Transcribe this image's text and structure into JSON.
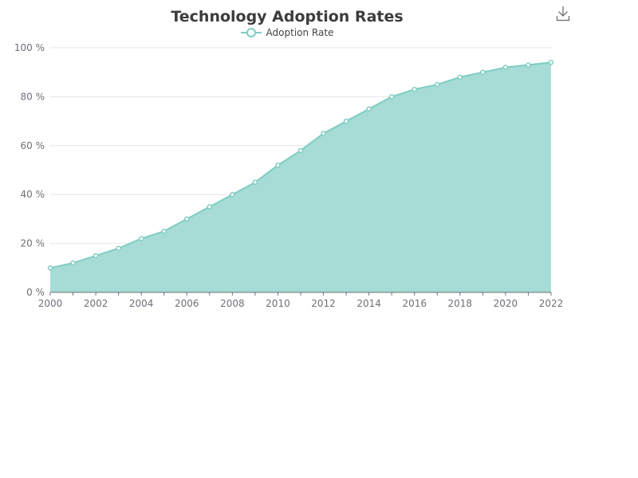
{
  "toolbar": {
    "download_icon": "download-icon"
  },
  "chart_data": {
    "type": "area",
    "title": "Technology Adoption Rates",
    "x": [
      2000,
      2001,
      2002,
      2003,
      2004,
      2005,
      2006,
      2007,
      2008,
      2009,
      2010,
      2011,
      2012,
      2013,
      2014,
      2015,
      2016,
      2017,
      2018,
      2019,
      2020,
      2021,
      2022
    ],
    "series": [
      {
        "name": "Adoption Rate",
        "values": [
          10,
          12,
          15,
          18,
          22,
          25,
          30,
          35,
          40,
          45,
          52,
          58,
          65,
          70,
          75,
          80,
          83,
          85,
          88,
          90,
          92,
          93,
          94
        ]
      }
    ],
    "x_tick_labels": [
      "2000",
      "2002",
      "2004",
      "2006",
      "2008",
      "2010",
      "2012",
      "2014",
      "2016",
      "2018",
      "2020",
      "2022"
    ],
    "y_tick_labels": [
      "0 %",
      "20 %",
      "40 %",
      "60 %",
      "80 %",
      "100 %"
    ],
    "ylim": [
      0,
      100
    ],
    "grid": true,
    "legend_position": "top-center",
    "colors": {
      "line": "#7fcdc2",
      "fill": "#a6dcd5",
      "grid": "#e6e6e6",
      "axis": "#6e7079"
    }
  }
}
